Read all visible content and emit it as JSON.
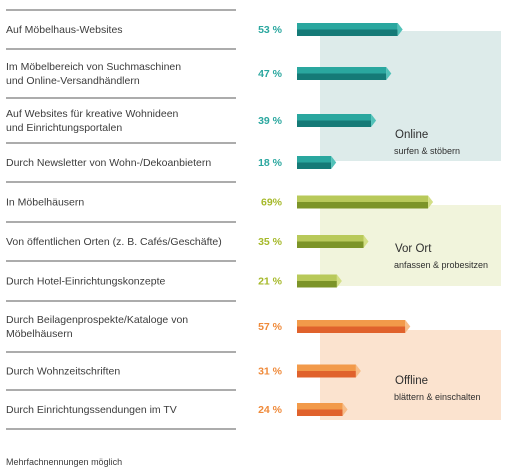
{
  "chart_data": {
    "type": "bar",
    "orientation": "horizontal",
    "unit": "%",
    "xlim": [
      0,
      100
    ],
    "groups": [
      {
        "key": "online",
        "title": "Online",
        "subtitle": "surfen & stöbern",
        "colors": {
          "pct": "#2aa79f",
          "top": "#2aa79f",
          "bottom": "#157a77",
          "tip": "#52c2b9",
          "panel": "#ddebea"
        },
        "rows": [
          {
            "label": [
              "Auf Möbelhaus-Websites"
            ],
            "value": 53,
            "value_label": "53 %"
          },
          {
            "label": [
              "Im Möbelbereich von Suchmaschinen",
              "und Online-Versandhändlern"
            ],
            "value": 47,
            "value_label": "47 %"
          },
          {
            "label": [
              "Auf Websites für kreative Wohnideen",
              "und Einrichtungsportalen"
            ],
            "value": 39,
            "value_label": "39 %"
          },
          {
            "label": [
              "Durch Newsletter von Wohn-/Dekoanbietern"
            ],
            "value": 18,
            "value_label": "18 %"
          }
        ]
      },
      {
        "key": "vor_ort",
        "title": "Vor Ort",
        "subtitle": "anfassen &  probesitzen",
        "colors": {
          "pct": "#a6b92a",
          "top": "#b8c95a",
          "bottom": "#7c9428",
          "tip": "#d3df86",
          "panel": "#f1f4dc"
        },
        "rows": [
          {
            "label": [
              "In Möbelhäusern"
            ],
            "value": 69,
            "value_label": "69%"
          },
          {
            "label": [
              "Von öffentlichen Orten (z. B. Cafés/Geschäfte)"
            ],
            "value": 35,
            "value_label": "35 %"
          },
          {
            "label": [
              "Durch Hotel-Einrichtungskonzepte"
            ],
            "value": 21,
            "value_label": "21 %"
          }
        ]
      },
      {
        "key": "offline",
        "title": "Offline",
        "subtitle": "blättern & einschalten",
        "colors": {
          "pct": "#ef8a3a",
          "top": "#f29a4a",
          "bottom": "#e0622c",
          "tip": "#f7bd88",
          "panel": "#fbe3cf"
        },
        "rows": [
          {
            "label": [
              "Durch Beilagenprospekte/Kataloge von",
              "Möbelhäusern"
            ],
            "value": 57,
            "value_label": "57 %"
          },
          {
            "label": [
              "Durch Wohnzeitschriften"
            ],
            "value": 31,
            "value_label": "31 %"
          },
          {
            "label": [
              "Durch Einrichtungssendungen im TV"
            ],
            "value": 24,
            "value_label": "24 %"
          }
        ]
      }
    ]
  },
  "footnote": "Mehrfachnennungen möglich"
}
